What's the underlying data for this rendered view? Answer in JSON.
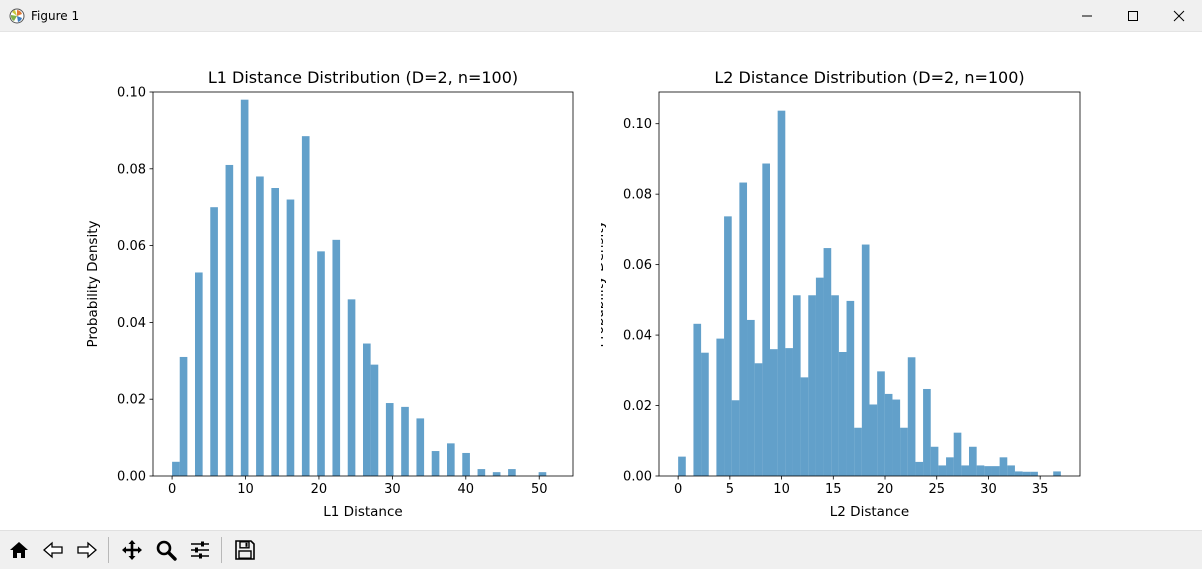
{
  "window": {
    "title": "Figure 1",
    "icon": "matplotlib-logo-icon",
    "controls": [
      "minimize-icon",
      "maximize-icon",
      "close-icon"
    ]
  },
  "toolbar": {
    "buttons": [
      "home-icon",
      "back-icon",
      "forward-icon",
      "pan-icon",
      "zoom-icon",
      "configure-icon",
      "save-icon"
    ]
  },
  "colors": {
    "bar": "#1f77b4",
    "bar_alpha": 0.7
  },
  "chart_data": [
    {
      "type": "bar",
      "title": "L1 Distance Distribution (D=2, n=100)",
      "xlabel": "L1 Distance",
      "ylabel": "Probability Density",
      "xlim": [
        -2.6,
        54.6
      ],
      "ylim": [
        0,
        0.1
      ],
      "xticks": [
        0,
        10,
        20,
        30,
        40,
        50
      ],
      "yticks": [
        0.0,
        0.02,
        0.04,
        0.06,
        0.08,
        0.1
      ],
      "xtick_labels": [
        "0",
        "10",
        "20",
        "30",
        "40",
        "50"
      ],
      "ytick_labels": [
        "0.00",
        "0.02",
        "0.04",
        "0.06",
        "0.08",
        "0.10"
      ],
      "bin_width": 1.04,
      "bins_start": [
        0,
        1.04,
        3.12,
        5.2,
        7.28,
        9.36,
        11.44,
        13.52,
        15.6,
        17.68,
        19.76,
        21.84,
        23.92,
        26.0,
        27.04,
        29.12,
        31.2,
        33.28,
        35.36,
        37.44,
        39.52,
        41.6,
        43.68,
        45.76,
        49.92
      ],
      "values": [
        0.0037,
        0.031,
        0.053,
        0.07,
        0.081,
        0.098,
        0.078,
        0.075,
        0.072,
        0.0885,
        0.0585,
        0.0615,
        0.046,
        0.0345,
        0.029,
        0.019,
        0.018,
        0.015,
        0.0065,
        0.0085,
        0.006,
        0.0018,
        0.001,
        0.0018,
        0.001
      ]
    },
    {
      "type": "bar",
      "title": "L2 Distance Distribution (D=2, n=100)",
      "xlabel": "L2 Distance",
      "ylabel": "Probability Density",
      "xlim": [
        -1.85,
        38.85
      ],
      "ylim": [
        0,
        0.109
      ],
      "xticks": [
        0,
        5,
        10,
        15,
        20,
        25,
        30,
        35
      ],
      "yticks": [
        0.0,
        0.02,
        0.04,
        0.06,
        0.08,
        0.1
      ],
      "xtick_labels": [
        "0",
        "5",
        "10",
        "15",
        "20",
        "25",
        "30",
        "35"
      ],
      "ytick_labels": [
        "0.00",
        "0.02",
        "0.04",
        "0.06",
        "0.08",
        "0.10"
      ],
      "bin_width": 0.74,
      "bins_start": [
        0,
        1.48,
        2.22,
        3.7,
        4.44,
        5.18,
        5.92,
        6.66,
        7.4,
        8.14,
        8.88,
        9.62,
        10.36,
        11.1,
        11.84,
        12.58,
        13.32,
        14.06,
        14.8,
        15.54,
        16.28,
        17.02,
        17.76,
        18.5,
        19.24,
        19.98,
        20.72,
        21.46,
        22.2,
        22.94,
        23.68,
        24.42,
        25.16,
        25.9,
        26.64,
        27.38,
        28.12,
        28.86,
        29.6,
        30.34,
        31.08,
        31.82,
        32.56,
        33.3,
        34.04,
        36.26
      ],
      "values": [
        0.0055,
        0.0432,
        0.035,
        0.039,
        0.0737,
        0.0215,
        0.0833,
        0.0443,
        0.032,
        0.0887,
        0.036,
        0.1037,
        0.0363,
        0.0513,
        0.028,
        0.0513,
        0.0563,
        0.0647,
        0.0513,
        0.0352,
        0.0497,
        0.0137,
        0.0657,
        0.0203,
        0.0297,
        0.0233,
        0.0217,
        0.0137,
        0.0337,
        0.004,
        0.0247,
        0.0083,
        0.003,
        0.0053,
        0.0123,
        0.003,
        0.0083,
        0.003,
        0.0028,
        0.0028,
        0.0053,
        0.003,
        0.0013,
        0.0012,
        0.0012,
        0.0013
      ]
    }
  ]
}
